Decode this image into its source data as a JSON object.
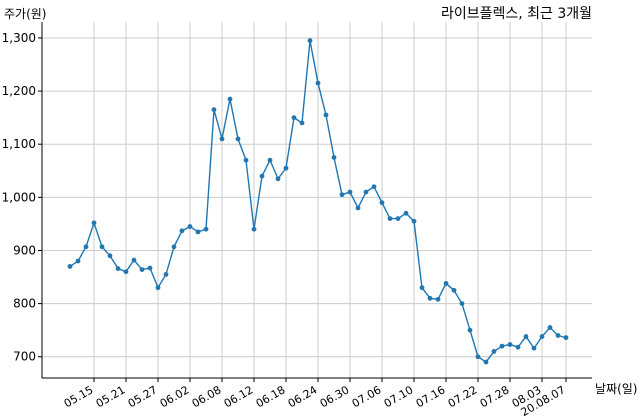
{
  "chart_data": {
    "type": "line",
    "title": "라이브플렉스, 최근 3개월",
    "xlabel": "날짜(일)",
    "ylabel": "주가(원)",
    "ylim": [
      660,
      1330
    ],
    "yticks": [
      700,
      800,
      900,
      1000,
      1100,
      1200,
      1300
    ],
    "ytick_labels": [
      "700",
      "800",
      "900",
      "1,000",
      "1,100",
      "1,200",
      "1,300"
    ],
    "xticks": [
      {
        "index": 3,
        "label": "05.15"
      },
      {
        "index": 7,
        "label": "05.21"
      },
      {
        "index": 11,
        "label": "05.27"
      },
      {
        "index": 15,
        "label": "06.02"
      },
      {
        "index": 19,
        "label": "06.08"
      },
      {
        "index": 23,
        "label": "06.12"
      },
      {
        "index": 27,
        "label": "06.18"
      },
      {
        "index": 31,
        "label": "06.24"
      },
      {
        "index": 35,
        "label": "06.30"
      },
      {
        "index": 39,
        "label": "07.06"
      },
      {
        "index": 43,
        "label": "07.10"
      },
      {
        "index": 47,
        "label": "07.16"
      },
      {
        "index": 51,
        "label": "07.22"
      },
      {
        "index": 55,
        "label": "07.28"
      },
      {
        "index": 59,
        "label": "08.03"
      },
      {
        "index": 62,
        "label": "20.08.07"
      }
    ],
    "grid": true,
    "color": "#1f77b4",
    "series": [
      {
        "values": [
          870,
          880,
          907,
          952,
          907,
          890,
          866,
          860,
          882,
          864,
          867,
          830,
          855,
          907,
          937,
          945,
          935,
          940,
          1165,
          1110,
          1185,
          1110,
          1070,
          940,
          1040,
          1070,
          1035,
          1055,
          1150,
          1140,
          1295,
          1215,
          1155,
          1075,
          1005,
          1010,
          980,
          1010,
          1020,
          990,
          960,
          960,
          970,
          955,
          830,
          810,
          808,
          838,
          825,
          800,
          750,
          700,
          690,
          710,
          720,
          723,
          718,
          738,
          716,
          738,
          755,
          740,
          736
        ]
      }
    ]
  }
}
